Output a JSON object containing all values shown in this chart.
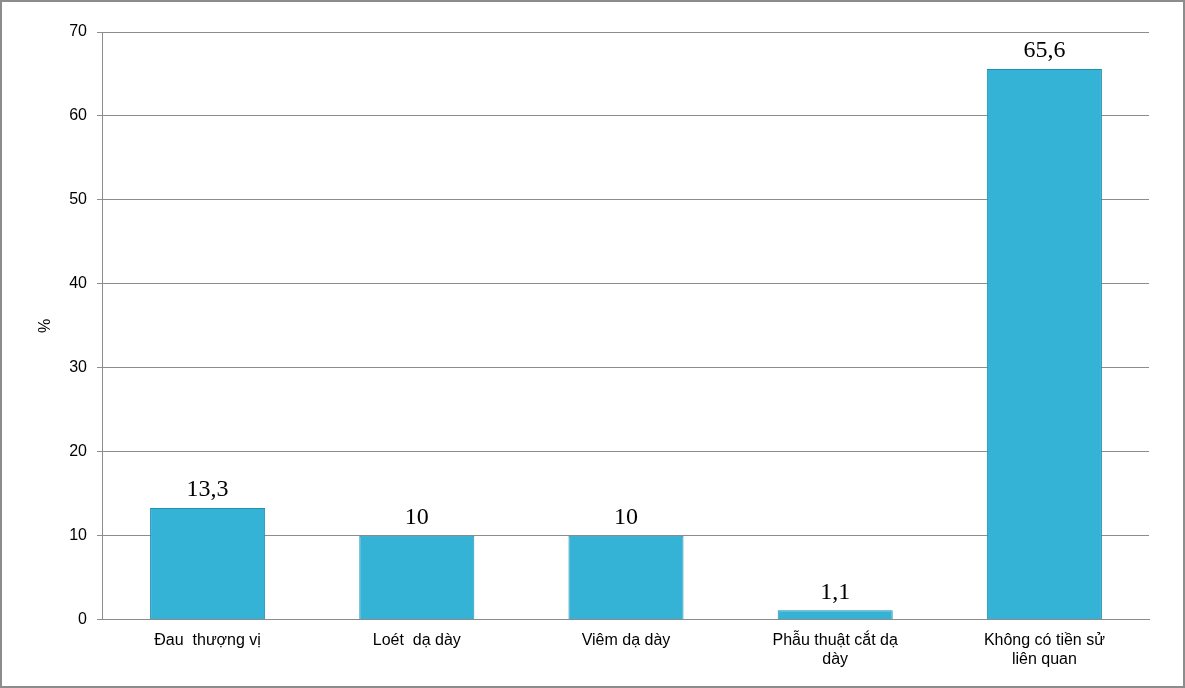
{
  "chart_data": {
    "type": "bar",
    "ylabel": "%",
    "categories": [
      "Đau  thượng vị",
      "Loét  dạ dày",
      "Viêm dạ dày",
      "Phẫu thuật cắt dạ dày",
      "Không có tiền sử liên quan"
    ],
    "values": [
      13.3,
      10,
      10,
      1.1,
      65.6
    ],
    "value_labels": [
      "13,3",
      "10",
      "10",
      "1,1",
      "65,6"
    ],
    "color": "#35b3d6",
    "ylim": [
      0,
      70
    ],
    "yticks": [
      0,
      10,
      20,
      30,
      40,
      50,
      60,
      70
    ],
    "grid": "y"
  }
}
